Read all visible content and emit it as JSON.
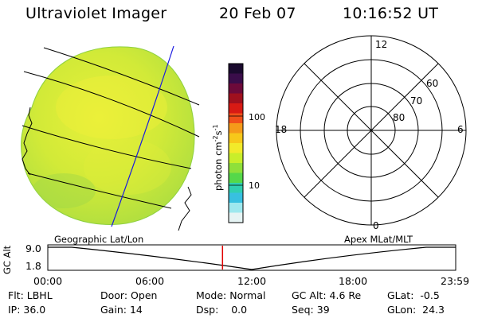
{
  "header": {
    "instrument": "Ultraviolet Imager",
    "date": "20 Feb 07",
    "time": "10:16:52 UT"
  },
  "colorbar": {
    "unit_label": "photon cm",
    "exp1": "-2",
    "unit_mid": "s",
    "exp2": "-1",
    "tick_100": "100",
    "tick_10": "10",
    "colors_top_to_bottom": [
      "#1a0a2e",
      "#3a0d4a",
      "#6d0a3a",
      "#a0101e",
      "#d81a14",
      "#f0501a",
      "#f59a1a",
      "#f7c81a",
      "#f2ea2a",
      "#c9ee2a",
      "#8fe03a",
      "#55d84a",
      "#30cfb0",
      "#38c0e0",
      "#9ee8ee",
      "#e6f4f4"
    ]
  },
  "earth_panel": {
    "caption": "Geographic Lat/Lon",
    "fill": "#c9e63a"
  },
  "polar_panel": {
    "caption": "Apex MLat/MLT",
    "mlt_top": "12",
    "mlt_left": "18",
    "mlt_right": "6",
    "mlt_bottom": "0",
    "lat_60": "60",
    "lat_70": "70",
    "lat_80": "80"
  },
  "alt_plot": {
    "ylabel": "GC Alt",
    "ytick_high": "9.0",
    "ytick_low": "1.8",
    "xticks": [
      "00:00",
      "06:00",
      "12:00",
      "18:00",
      "23:59"
    ],
    "current_time_marker_hours": 10.28,
    "marker_color": "#e00000"
  },
  "status": {
    "flt_label": "Flt:",
    "flt_value": "LBHL",
    "door_label": "Door:",
    "door_value": "Open",
    "mode_label": "Mode:",
    "mode_value": "Normal",
    "gcalt_label": "GC Alt:",
    "gcalt_value": "4.6 Re",
    "glat_label": "GLat:",
    "glat_value": "-0.5",
    "ip_label": "IP:",
    "ip_value": "36.0",
    "gain_label": "Gain:",
    "gain_value": "14",
    "dsp_label": "Dsp:",
    "dsp_value": "0.0",
    "seq_label": "Seq:",
    "seq_value": "39",
    "glon_label": "GLon:",
    "glon_value": "24.3"
  }
}
